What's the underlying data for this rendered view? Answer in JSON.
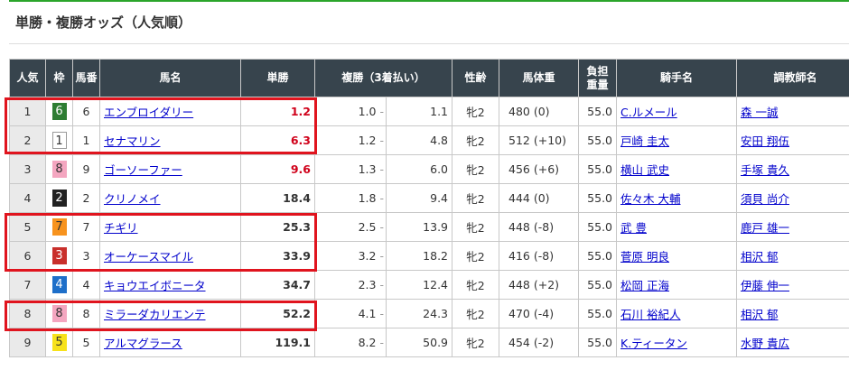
{
  "title": "単勝・複勝オッズ（人気順）",
  "headers": {
    "pop": "人気",
    "waku": "枠",
    "num": "馬番",
    "name": "馬名",
    "win": "単勝",
    "place": "複勝（3着払い）",
    "sexage": "性齢",
    "weight": "馬体重",
    "load1": "負担",
    "load2": "重量",
    "jockey": "騎手名",
    "trainer": "調教師名"
  },
  "frame_colors": {
    "1": [
      "#ffffff",
      "#333"
    ],
    "2": [
      "#222222",
      "#fff"
    ],
    "3": [
      "#c9302c",
      "#fff"
    ],
    "4": [
      "#1e6fc9",
      "#fff"
    ],
    "5": [
      "#f7e21b",
      "#333"
    ],
    "6": [
      "#2e7d32",
      "#fff"
    ],
    "7": [
      "#f7931e",
      "#333"
    ],
    "8": [
      "#f4a6c0",
      "#333"
    ]
  },
  "highlight_color": "#e0141e",
  "rows": [
    {
      "pop": "1",
      "waku": "6",
      "num": "6",
      "name": "エンブロイダリー",
      "win": "1.2",
      "hot": true,
      "pmin": "1.0",
      "pmax": "1.1",
      "sexage": "牝2",
      "weight": "480 (0)",
      "load": "55.0",
      "jockey": "C.ルメール",
      "trainer": "森 一誠"
    },
    {
      "pop": "2",
      "waku": "1",
      "num": "1",
      "name": "セナマリン",
      "win": "6.3",
      "hot": true,
      "pmin": "1.2",
      "pmax": "4.8",
      "sexage": "牝2",
      "weight": "512 (+10)",
      "load": "55.0",
      "jockey": "戸崎 圭太",
      "trainer": "安田 翔伍"
    },
    {
      "pop": "3",
      "waku": "8",
      "num": "9",
      "name": "ゴーソーファー",
      "win": "9.6",
      "hot": true,
      "pmin": "1.3",
      "pmax": "6.0",
      "sexage": "牝2",
      "weight": "456 (+6)",
      "load": "55.0",
      "jockey": "横山 武史",
      "trainer": "手塚 貴久"
    },
    {
      "pop": "4",
      "waku": "2",
      "num": "2",
      "name": "クリノメイ",
      "win": "18.4",
      "hot": false,
      "pmin": "1.8",
      "pmax": "9.4",
      "sexage": "牝2",
      "weight": "444 (0)",
      "load": "55.0",
      "jockey": "佐々木 大輔",
      "trainer": "須貝 尚介"
    },
    {
      "pop": "5",
      "waku": "7",
      "num": "7",
      "name": "チギリ",
      "win": "25.3",
      "hot": false,
      "pmin": "2.5",
      "pmax": "13.9",
      "sexage": "牝2",
      "weight": "448 (-8)",
      "load": "55.0",
      "jockey": "武 豊",
      "trainer": "鹿戸 雄一"
    },
    {
      "pop": "6",
      "waku": "3",
      "num": "3",
      "name": "オーケースマイル",
      "win": "33.9",
      "hot": false,
      "pmin": "3.2",
      "pmax": "18.2",
      "sexage": "牝2",
      "weight": "416 (-8)",
      "load": "55.0",
      "jockey": "菅原 明良",
      "trainer": "相沢 郁"
    },
    {
      "pop": "7",
      "waku": "4",
      "num": "4",
      "name": "キョウエイボニータ",
      "win": "34.7",
      "hot": false,
      "pmin": "2.3",
      "pmax": "12.4",
      "sexage": "牝2",
      "weight": "448 (+2)",
      "load": "55.0",
      "jockey": "松岡 正海",
      "trainer": "伊藤 伸一"
    },
    {
      "pop": "8",
      "waku": "8",
      "num": "8",
      "name": "ミラーダカリエンテ",
      "win": "52.2",
      "hot": false,
      "pmin": "4.1",
      "pmax": "24.3",
      "sexage": "牝2",
      "weight": "470 (-4)",
      "load": "55.0",
      "jockey": "石川 裕紀人",
      "trainer": "相沢 郁"
    },
    {
      "pop": "9",
      "waku": "5",
      "num": "5",
      "name": "アルマグラース",
      "win": "119.1",
      "hot": false,
      "pmin": "8.2",
      "pmax": "50.9",
      "sexage": "牝2",
      "weight": "454 (-2)",
      "load": "55.0",
      "jockey": "K.ティータン",
      "trainer": "水野 貴広"
    }
  ]
}
